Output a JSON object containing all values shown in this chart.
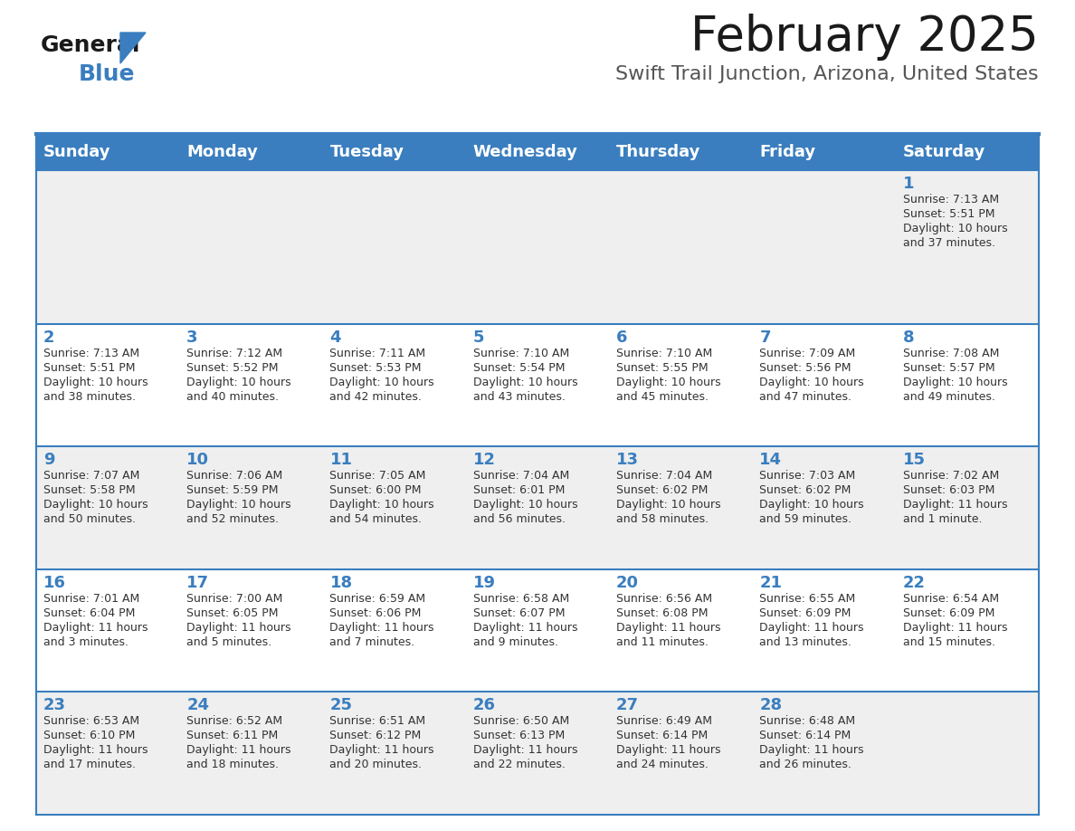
{
  "title": "February 2025",
  "subtitle": "Swift Trail Junction, Arizona, United States",
  "header_color": "#3a7ebf",
  "header_text_color": "#ffffff",
  "days_of_week": [
    "Sunday",
    "Monday",
    "Tuesday",
    "Wednesday",
    "Thursday",
    "Friday",
    "Saturday"
  ],
  "background_color": "#ffffff",
  "cell_bg_even": "#efefef",
  "cell_bg_odd": "#ffffff",
  "line_color": "#3a7ebf",
  "day_num_color": "#3a7ebf",
  "text_color": "#333333",
  "calendar_data": [
    [
      null,
      null,
      null,
      null,
      null,
      null,
      {
        "day": "1",
        "sunrise": "7:13 AM",
        "sunset": "5:51 PM",
        "daylight1": "10 hours",
        "daylight2": "and 37 minutes."
      }
    ],
    [
      {
        "day": "2",
        "sunrise": "7:13 AM",
        "sunset": "5:51 PM",
        "daylight1": "10 hours",
        "daylight2": "and 38 minutes."
      },
      {
        "day": "3",
        "sunrise": "7:12 AM",
        "sunset": "5:52 PM",
        "daylight1": "10 hours",
        "daylight2": "and 40 minutes."
      },
      {
        "day": "4",
        "sunrise": "7:11 AM",
        "sunset": "5:53 PM",
        "daylight1": "10 hours",
        "daylight2": "and 42 minutes."
      },
      {
        "day": "5",
        "sunrise": "7:10 AM",
        "sunset": "5:54 PM",
        "daylight1": "10 hours",
        "daylight2": "and 43 minutes."
      },
      {
        "day": "6",
        "sunrise": "7:10 AM",
        "sunset": "5:55 PM",
        "daylight1": "10 hours",
        "daylight2": "and 45 minutes."
      },
      {
        "day": "7",
        "sunrise": "7:09 AM",
        "sunset": "5:56 PM",
        "daylight1": "10 hours",
        "daylight2": "and 47 minutes."
      },
      {
        "day": "8",
        "sunrise": "7:08 AM",
        "sunset": "5:57 PM",
        "daylight1": "10 hours",
        "daylight2": "and 49 minutes."
      }
    ],
    [
      {
        "day": "9",
        "sunrise": "7:07 AM",
        "sunset": "5:58 PM",
        "daylight1": "10 hours",
        "daylight2": "and 50 minutes."
      },
      {
        "day": "10",
        "sunrise": "7:06 AM",
        "sunset": "5:59 PM",
        "daylight1": "10 hours",
        "daylight2": "and 52 minutes."
      },
      {
        "day": "11",
        "sunrise": "7:05 AM",
        "sunset": "6:00 PM",
        "daylight1": "10 hours",
        "daylight2": "and 54 minutes."
      },
      {
        "day": "12",
        "sunrise": "7:04 AM",
        "sunset": "6:01 PM",
        "daylight1": "10 hours",
        "daylight2": "and 56 minutes."
      },
      {
        "day": "13",
        "sunrise": "7:04 AM",
        "sunset": "6:02 PM",
        "daylight1": "10 hours",
        "daylight2": "and 58 minutes."
      },
      {
        "day": "14",
        "sunrise": "7:03 AM",
        "sunset": "6:02 PM",
        "daylight1": "10 hours",
        "daylight2": "and 59 minutes."
      },
      {
        "day": "15",
        "sunrise": "7:02 AM",
        "sunset": "6:03 PM",
        "daylight1": "11 hours",
        "daylight2": "and 1 minute."
      }
    ],
    [
      {
        "day": "16",
        "sunrise": "7:01 AM",
        "sunset": "6:04 PM",
        "daylight1": "11 hours",
        "daylight2": "and 3 minutes."
      },
      {
        "day": "17",
        "sunrise": "7:00 AM",
        "sunset": "6:05 PM",
        "daylight1": "11 hours",
        "daylight2": "and 5 minutes."
      },
      {
        "day": "18",
        "sunrise": "6:59 AM",
        "sunset": "6:06 PM",
        "daylight1": "11 hours",
        "daylight2": "and 7 minutes."
      },
      {
        "day": "19",
        "sunrise": "6:58 AM",
        "sunset": "6:07 PM",
        "daylight1": "11 hours",
        "daylight2": "and 9 minutes."
      },
      {
        "day": "20",
        "sunrise": "6:56 AM",
        "sunset": "6:08 PM",
        "daylight1": "11 hours",
        "daylight2": "and 11 minutes."
      },
      {
        "day": "21",
        "sunrise": "6:55 AM",
        "sunset": "6:09 PM",
        "daylight1": "11 hours",
        "daylight2": "and 13 minutes."
      },
      {
        "day": "22",
        "sunrise": "6:54 AM",
        "sunset": "6:09 PM",
        "daylight1": "11 hours",
        "daylight2": "and 15 minutes."
      }
    ],
    [
      {
        "day": "23",
        "sunrise": "6:53 AM",
        "sunset": "6:10 PM",
        "daylight1": "11 hours",
        "daylight2": "and 17 minutes."
      },
      {
        "day": "24",
        "sunrise": "6:52 AM",
        "sunset": "6:11 PM",
        "daylight1": "11 hours",
        "daylight2": "and 18 minutes."
      },
      {
        "day": "25",
        "sunrise": "6:51 AM",
        "sunset": "6:12 PM",
        "daylight1": "11 hours",
        "daylight2": "and 20 minutes."
      },
      {
        "day": "26",
        "sunrise": "6:50 AM",
        "sunset": "6:13 PM",
        "daylight1": "11 hours",
        "daylight2": "and 22 minutes."
      },
      {
        "day": "27",
        "sunrise": "6:49 AM",
        "sunset": "6:14 PM",
        "daylight1": "11 hours",
        "daylight2": "and 24 minutes."
      },
      {
        "day": "28",
        "sunrise": "6:48 AM",
        "sunset": "6:14 PM",
        "daylight1": "11 hours",
        "daylight2": "and 26 minutes."
      },
      null
    ]
  ]
}
